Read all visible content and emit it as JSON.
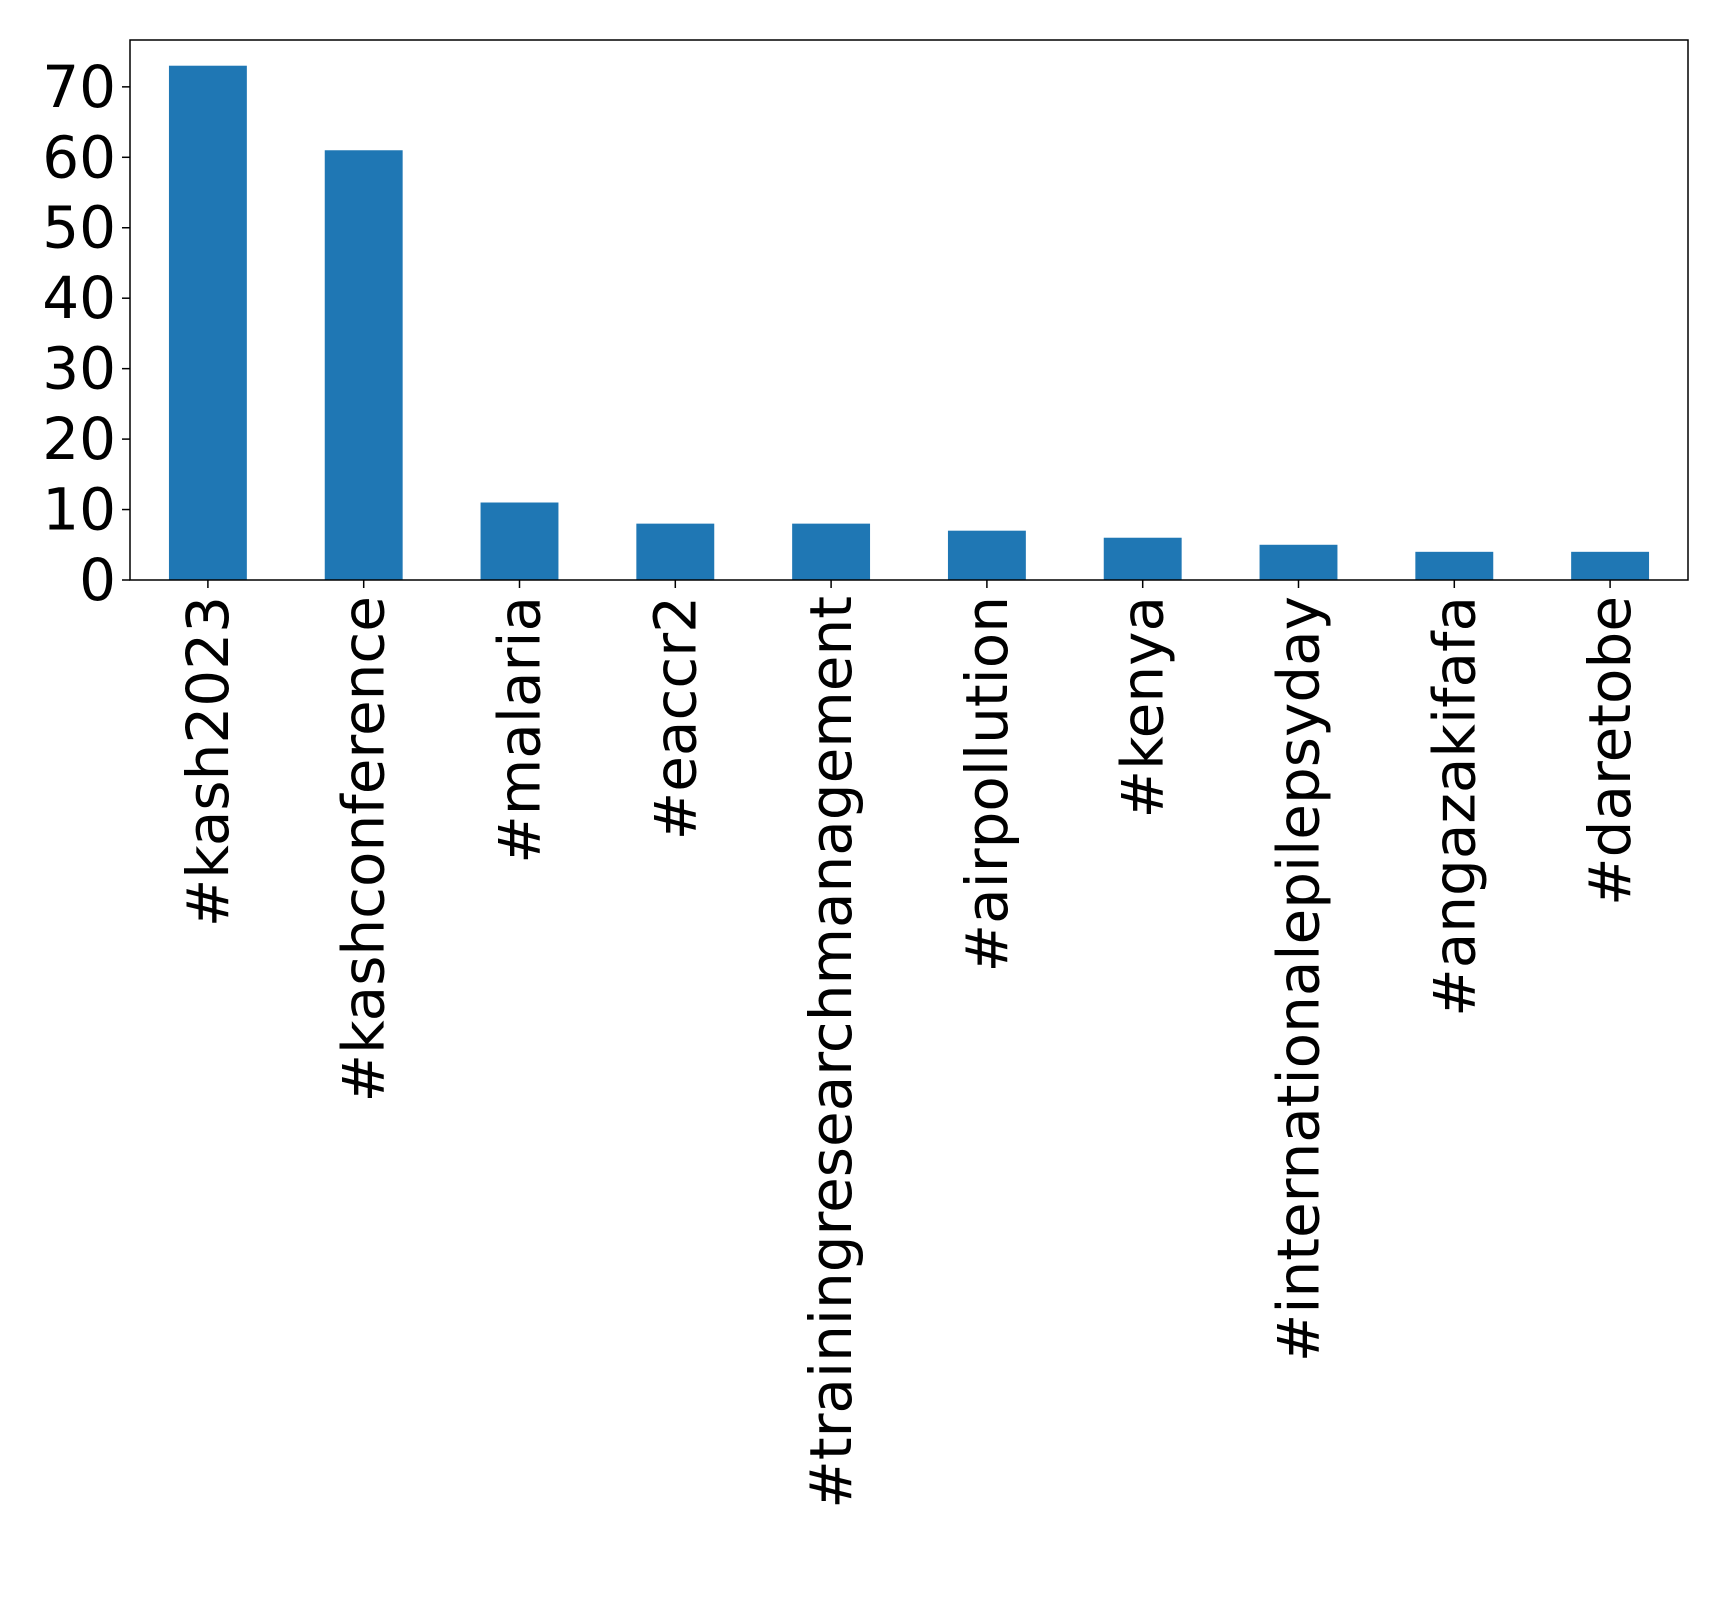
{
  "chart_data": {
    "type": "bar",
    "title": "",
    "xlabel": "",
    "ylabel": "",
    "categories": [
      "#kash2023",
      "#kashconference",
      "#malaria",
      "#eaccr2",
      "#trainingresearchmanagement",
      "#airpollution",
      "#kenya",
      "#internationalepilepsyday",
      "#angazakifafa",
      "#daretobe"
    ],
    "values": [
      73,
      61,
      11,
      8,
      8,
      7,
      6,
      5,
      4,
      4
    ],
    "ylim": [
      0,
      76.65
    ],
    "yticks": [
      "0",
      "10",
      "20",
      "30",
      "40",
      "50",
      "60",
      "70"
    ],
    "grid": false,
    "legend": "none",
    "colors": {
      "bar": "#1f77b4",
      "axis": "#000000",
      "background": "#ffffff"
    }
  }
}
